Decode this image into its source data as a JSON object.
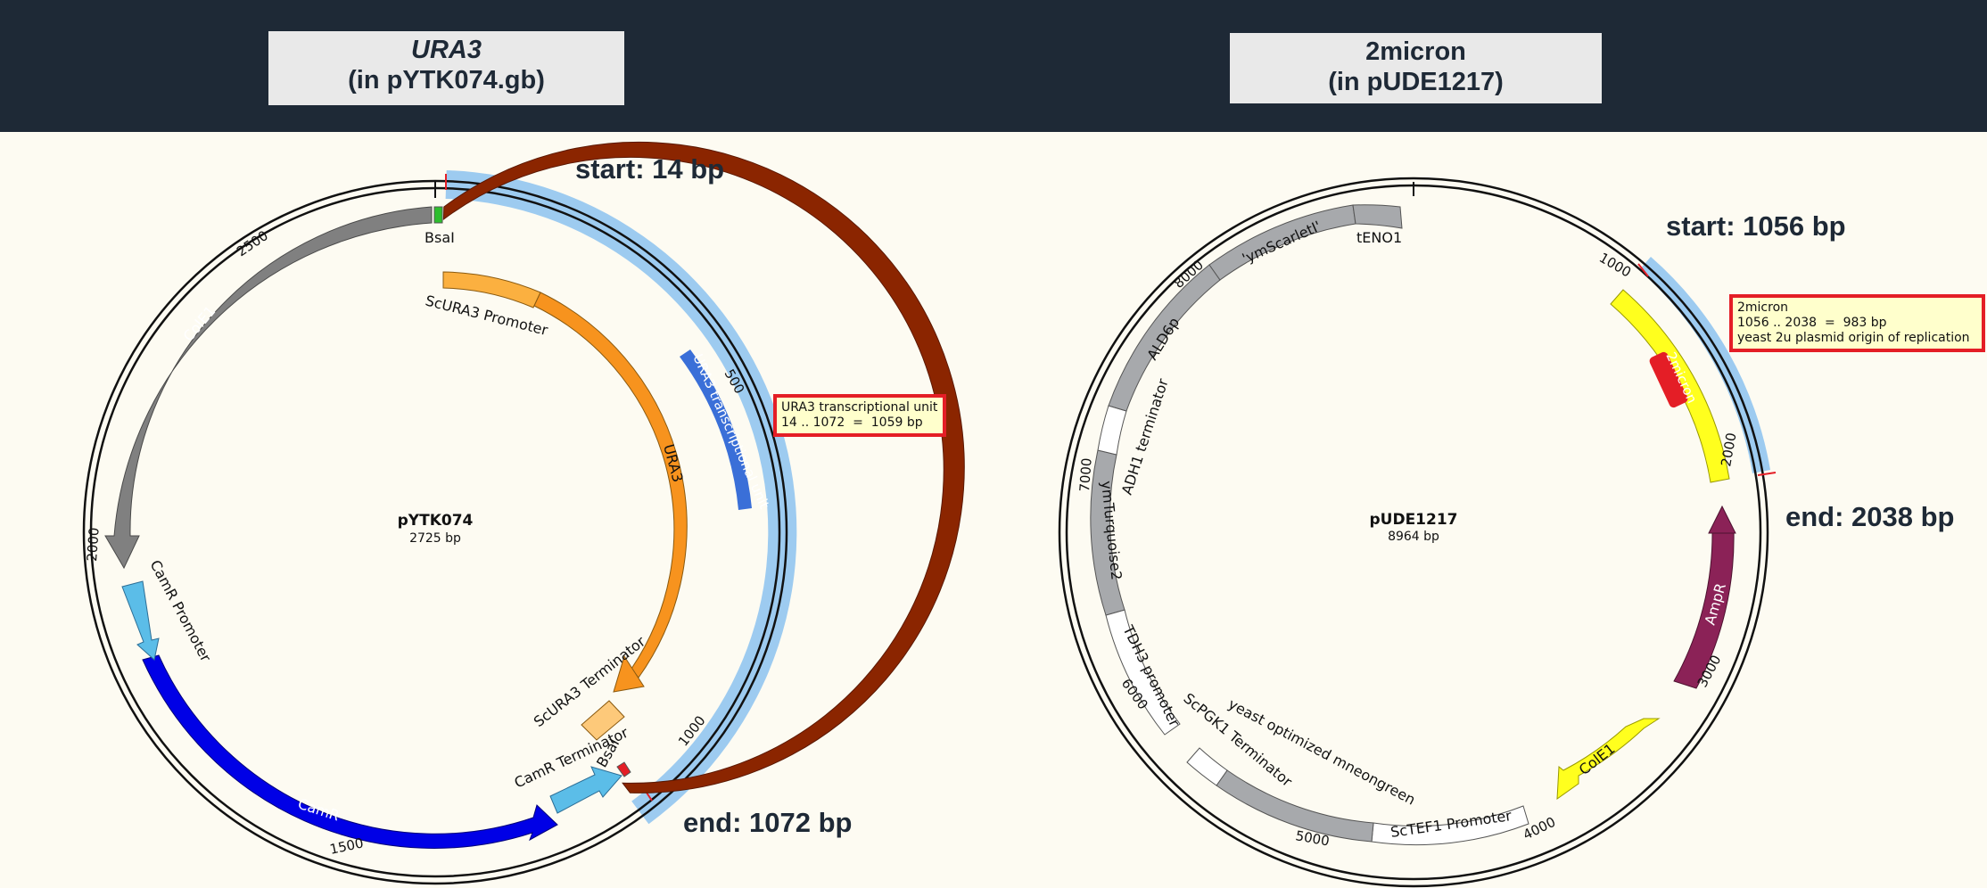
{
  "left_panel": {
    "title_line1": "URA3",
    "title_line2": "(in pYTK074.gb)",
    "plasmid_name": "pYTK074",
    "plasmid_length": "2725 bp",
    "start_label": "start: 14 bp",
    "end_label": "end: 1072 bp",
    "tooltip": {
      "line1": "URA3 transcriptional unit",
      "line2": "14 .. 1072  =  1059 bp"
    },
    "ticks": [
      "500",
      "1000",
      "1500",
      "2000",
      "2500"
    ],
    "features": {
      "bsai_top": "BsaI",
      "bsai_bottom": "BsaI",
      "promoter": "ScURA3 Promoter",
      "ura3": "URA3",
      "tu": "URA3 transcriptional unit",
      "terminator": "ScURA3 Terminator",
      "camr_terminator": "CamR Terminator",
      "camr": "CamR",
      "camr_promoter": "CamR Promoter",
      "cole1": "ColE1"
    }
  },
  "right_panel": {
    "title_line1": "2micron",
    "title_line2": "(in pUDE1217)",
    "plasmid_name": "pUDE1217",
    "plasmid_length": "8964 bp",
    "start_label": "start: 1056 bp",
    "end_label": "end: 2038 bp",
    "tooltip": {
      "line1": "2micron",
      "line2": "1056 .. 2038  =  983 bp",
      "line3": "yeast 2u plasmid origin of replication"
    },
    "ticks": [
      "1000",
      "2000",
      "3000",
      "4000",
      "5000",
      "6000",
      "7000",
      "8000"
    ],
    "features": {
      "two_micron": "2micron",
      "ampr": "AmpR",
      "cole1": "ColE1",
      "tef1_promoter": "ScTEF1 Promoter",
      "mneongreen": "yeast optimized mneongreen",
      "pgk1_terminator": "ScPGK1 Terminator",
      "tdh3_promoter": "TDH3 promoter",
      "turquoise": "ymTurquoise2",
      "adh1_terminator": "ADH1 terminator",
      "ald6p": "ALD6p",
      "scarlet": "'ymScarletI'",
      "teno1": "tENO1"
    }
  },
  "colors": {
    "header_bg": "#1e2936",
    "highlight_blue": "#9dcbf0",
    "tooltip_border": "#e41e26",
    "brown": "#8b2500",
    "orange": "#f7931e",
    "grey": "#808080",
    "dark_blue": "#0000e6",
    "light_blue": "#5bbde8",
    "yellow": "#ffff00",
    "purple": "#8b2257"
  }
}
